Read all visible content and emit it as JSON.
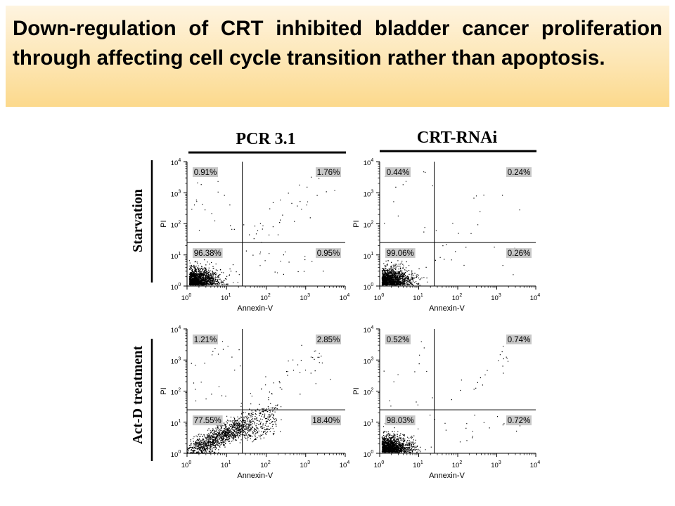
{
  "slide": {
    "title": "Down-regulation of CRT inhibited bladder cancer proliferation through affecting cell cycle transition rather than apoptosis."
  },
  "figure": {
    "column_headers": [
      "PCR 3.1",
      "CRT-RNAi"
    ],
    "row_labels": [
      "Starvation",
      "Act-D treatment"
    ],
    "quadrant_line_color": "#000000",
    "label_box_color": "#c8c8c8"
  },
  "chart_data": [
    {
      "type": "scatter",
      "column": "PCR 3.1",
      "row": "Starvation",
      "xlabel": "Annexin-V",
      "ylabel": "PI",
      "x_scale": "log",
      "y_scale": "log",
      "xlim": [
        1,
        10000
      ],
      "ylim": [
        1,
        10000
      ],
      "x_ticks": [
        1,
        10,
        100,
        1000,
        10000
      ],
      "y_ticks": [
        1,
        10,
        100,
        1000,
        10000
      ],
      "gate": {
        "x": 25,
        "y": 25
      },
      "quadrants": {
        "upper_left": "0.91%",
        "upper_right": "1.76%",
        "lower_left": "96.38%",
        "lower_right": "0.95%"
      }
    },
    {
      "type": "scatter",
      "column": "CRT-RNAi",
      "row": "Starvation",
      "xlabel": "Annexin-V",
      "ylabel": "PI",
      "x_scale": "log",
      "y_scale": "log",
      "xlim": [
        1,
        10000
      ],
      "ylim": [
        1,
        10000
      ],
      "x_ticks": [
        1,
        10,
        100,
        1000,
        10000
      ],
      "y_ticks": [
        1,
        10,
        100,
        1000,
        10000
      ],
      "gate": {
        "x": 25,
        "y": 25
      },
      "quadrants": {
        "upper_left": "0.44%",
        "upper_right": "0.24%",
        "lower_left": "99.06%",
        "lower_right": "0.26%"
      }
    },
    {
      "type": "scatter",
      "column": "PCR 3.1",
      "row": "Act-D treatment",
      "xlabel": "Annexin-V",
      "ylabel": "PI",
      "x_scale": "log",
      "y_scale": "log",
      "xlim": [
        1,
        10000
      ],
      "ylim": [
        1,
        10000
      ],
      "x_ticks": [
        1,
        10,
        100,
        1000,
        10000
      ],
      "y_ticks": [
        1,
        10,
        100,
        1000,
        10000
      ],
      "gate": {
        "x": 25,
        "y": 25
      },
      "quadrants": {
        "upper_left": "1.21%",
        "upper_right": "2.85%",
        "lower_left": "77.55%",
        "lower_right": "18.40%"
      }
    },
    {
      "type": "scatter",
      "column": "CRT-RNAi",
      "row": "Act-D treatment",
      "xlabel": "Annexin-V",
      "ylabel": "PI",
      "x_scale": "log",
      "y_scale": "log",
      "xlim": [
        1,
        10000
      ],
      "ylim": [
        1,
        10000
      ],
      "x_ticks": [
        1,
        10,
        100,
        1000,
        10000
      ],
      "y_ticks": [
        1,
        10,
        100,
        1000,
        10000
      ],
      "gate": {
        "x": 25,
        "y": 25
      },
      "quadrants": {
        "upper_left": "0.52%",
        "upper_right": "0.74%",
        "lower_left": "98.03%",
        "lower_right": "0.72%"
      }
    }
  ]
}
